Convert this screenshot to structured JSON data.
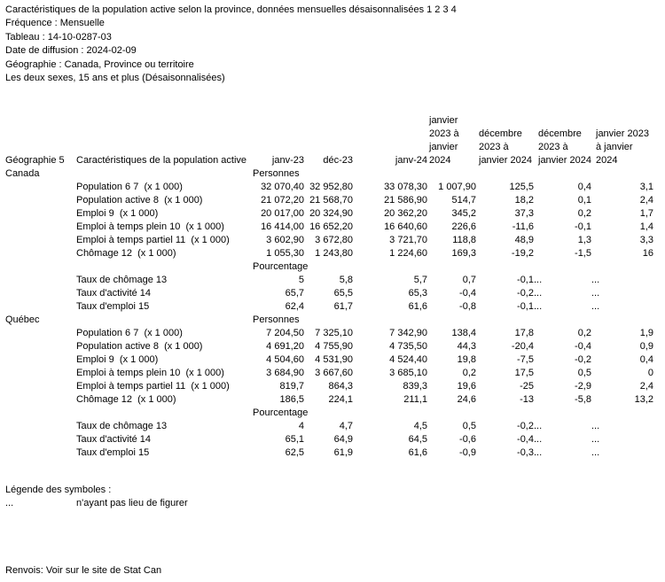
{
  "meta": {
    "title": "Caractéristiques de la population active selon la province, données mensuelles désaisonnalisées 1 2 3 4",
    "lines": [
      "Fréquence : Mensuelle",
      "Tableau : 14-10-0287-03",
      "Date de diffusion : 2024-02-09",
      "Géographie : Canada, Province ou territoire",
      "Les deux sexes, 15 ans et plus (Désaisonnalisées)"
    ]
  },
  "table": {
    "headers": {
      "geo": "Géographie 5",
      "characteristics": "Caractéristiques de la population active",
      "periods": [
        "janv-23",
        "déc-23",
        "janv-24"
      ],
      "changes": [
        "janvier 2023 à janvier 2024",
        "décembre 2023 à janvier 2024",
        "décembre 2023 à janvier 2024",
        "janvier 2023 à janvier 2024"
      ]
    },
    "sections": [
      {
        "geo": "Canada",
        "unit_personnes": "Personnes",
        "personnes_rows": [
          {
            "label": "Population 6 7  (x 1 000)",
            "values": [
              "32 070,40",
              "32 952,80",
              "33 078,30",
              "1 007,90",
              "125,5",
              "0,4",
              "3,1"
            ]
          },
          {
            "label": "Population active 8  (x 1 000)",
            "values": [
              "21 072,20",
              "21 568,70",
              "21 586,90",
              "514,7",
              "18,2",
              "0,1",
              "2,4"
            ]
          },
          {
            "label": "Emploi 9  (x 1 000)",
            "values": [
              "20 017,00",
              "20 324,90",
              "20 362,20",
              "345,2",
              "37,3",
              "0,2",
              "1,7"
            ]
          },
          {
            "label": "Emploi à temps plein 10  (x 1 000)",
            "values": [
              "16 414,00",
              "16 652,20",
              "16 640,60",
              "226,6",
              "-11,6",
              "-0,1",
              "1,4"
            ]
          },
          {
            "label": "Emploi à temps partiel 11  (x 1 000)",
            "values": [
              "3 602,90",
              "3 672,80",
              "3 721,70",
              "118,8",
              "48,9",
              "1,3",
              "3,3"
            ]
          },
          {
            "label": "Chômage 12  (x 1 000)",
            "values": [
              "1 055,30",
              "1 243,80",
              "1 224,60",
              "169,3",
              "-19,2",
              "-1,5",
              "16"
            ]
          }
        ],
        "unit_pourcentage": "Pourcentage",
        "pourcentage_rows": [
          {
            "label": "Taux de chômage 13",
            "values": [
              "5",
              "5,8",
              "5,7",
              "0,7",
              "-0,1",
              "...",
              "..."
            ]
          },
          {
            "label": "Taux d'activité 14",
            "values": [
              "65,7",
              "65,5",
              "65,3",
              "-0,4",
              "-0,2",
              "...",
              "..."
            ]
          },
          {
            "label": "Taux d'emploi 15",
            "values": [
              "62,4",
              "61,7",
              "61,6",
              "-0,8",
              "-0,1",
              "...",
              "..."
            ]
          }
        ]
      },
      {
        "geo": "Québec",
        "unit_personnes": "Personnes",
        "personnes_rows": [
          {
            "label": "Population 6 7  (x 1 000)",
            "values": [
              "7 204,50",
              "7 325,10",
              "7 342,90",
              "138,4",
              "17,8",
              "0,2",
              "1,9"
            ]
          },
          {
            "label": "Population active 8  (x 1 000)",
            "values": [
              "4 691,20",
              "4 755,90",
              "4 735,50",
              "44,3",
              "-20,4",
              "-0,4",
              "0,9"
            ]
          },
          {
            "label": "Emploi 9  (x 1 000)",
            "values": [
              "4 504,60",
              "4 531,90",
              "4 524,40",
              "19,8",
              "-7,5",
              "-0,2",
              "0,4"
            ]
          },
          {
            "label": "Emploi à temps plein 10  (x 1 000)",
            "values": [
              "3 684,90",
              "3 667,60",
              "3 685,10",
              "0,2",
              "17,5",
              "0,5",
              "0"
            ]
          },
          {
            "label": "Emploi à temps partiel 11  (x 1 000)",
            "values": [
              "819,7",
              "864,3",
              "839,3",
              "19,6",
              "-25",
              "-2,9",
              "2,4"
            ]
          },
          {
            "label": "Chômage 12  (x 1 000)",
            "values": [
              "186,5",
              "224,1",
              "211,1",
              "24,6",
              "-13",
              "-5,8",
              "13,2"
            ]
          }
        ],
        "unit_pourcentage": "Pourcentage",
        "pourcentage_rows": [
          {
            "label": "Taux de chômage 13",
            "values": [
              "4",
              "4,7",
              "4,5",
              "0,5",
              "-0,2",
              "...",
              "..."
            ]
          },
          {
            "label": "Taux d'activité 14",
            "values": [
              "65,1",
              "64,9",
              "64,5",
              "-0,6",
              "-0,4",
              "...",
              "..."
            ]
          },
          {
            "label": "Taux d'emploi 15",
            "values": [
              "62,5",
              "61,9",
              "61,6",
              "-0,9",
              "-0,3",
              "...",
              "..."
            ]
          }
        ]
      }
    ]
  },
  "legend": {
    "title": "Légende des symboles :",
    "symbol": "...",
    "meaning": "n'ayant pas lieu de figurer"
  },
  "footer": {
    "text": "Renvois: Voir sur le site de Stat Can"
  }
}
